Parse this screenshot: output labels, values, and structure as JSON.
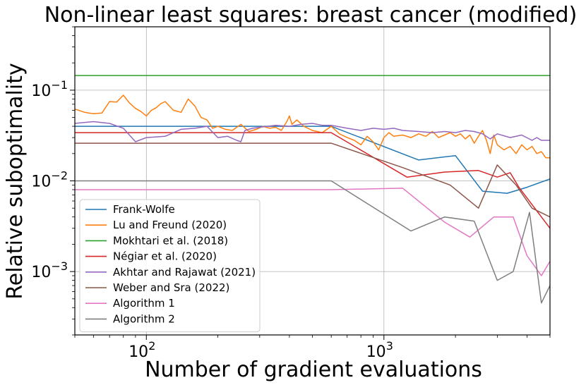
{
  "chart_data": {
    "type": "line",
    "title": "Non-linear least squares: breast cancer (modified)",
    "xlabel": "Number of gradient evaluations",
    "ylabel": "Relative suboptimality",
    "xscale": "log",
    "yscale": "log",
    "xlim": [
      50,
      5000
    ],
    "ylim": [
      0.0002,
      0.5
    ],
    "xticks": [
      {
        "value": 100,
        "base": "10",
        "exp": "2"
      },
      {
        "value": 1000,
        "base": "10",
        "exp": "3"
      }
    ],
    "yticks": [
      {
        "value": 0.1,
        "base": "10",
        "exp": "−1"
      },
      {
        "value": 0.01,
        "base": "10",
        "exp": "−2"
      },
      {
        "value": 0.001,
        "base": "10",
        "exp": "−3"
      }
    ],
    "grid": true,
    "legend_position": "lower-left",
    "series": [
      {
        "name": "Frank-Wolfe",
        "color": "#1f77b4",
        "x": [
          50,
          600,
          1400,
          2000,
          2600,
          3300,
          4000,
          5000
        ],
        "y": [
          0.04,
          0.04,
          0.017,
          0.019,
          0.0077,
          0.0073,
          0.0085,
          0.0105
        ]
      },
      {
        "name": "Lu and Freund (2020)",
        "color": "#ff7f0e",
        "x": [
          50,
          55,
          60,
          65,
          70,
          75,
          80,
          85,
          90,
          95,
          100,
          105,
          110,
          115,
          120,
          130,
          140,
          150,
          160,
          170,
          180,
          190,
          200,
          215,
          230,
          250,
          270,
          290,
          310,
          330,
          350,
          370,
          390,
          400,
          410,
          430,
          460,
          500,
          550,
          600,
          650,
          700,
          750,
          800,
          850,
          900,
          950,
          1000,
          1050,
          1100,
          1200,
          1300,
          1400,
          1500,
          1600,
          1700,
          1800,
          1900,
          2000,
          2100,
          2200,
          2300,
          2400,
          2500,
          2600,
          2700,
          2800,
          2900,
          3000,
          3200,
          3400,
          3600,
          3800,
          4000,
          4200,
          4400,
          4600,
          4800,
          5000
        ],
        "y": [
          0.062,
          0.057,
          0.055,
          0.056,
          0.075,
          0.074,
          0.088,
          0.072,
          0.063,
          0.058,
          0.052,
          0.06,
          0.064,
          0.071,
          0.075,
          0.06,
          0.057,
          0.08,
          0.067,
          0.05,
          0.047,
          0.038,
          0.04,
          0.037,
          0.036,
          0.042,
          0.035,
          0.037,
          0.04,
          0.038,
          0.039,
          0.036,
          0.045,
          0.052,
          0.042,
          0.047,
          0.04,
          0.036,
          0.034,
          0.04,
          0.033,
          0.03,
          0.028,
          0.025,
          0.031,
          0.027,
          0.022,
          0.03,
          0.034,
          0.031,
          0.032,
          0.03,
          0.033,
          0.031,
          0.035,
          0.03,
          0.032,
          0.034,
          0.031,
          0.033,
          0.029,
          0.032,
          0.026,
          0.031,
          0.036,
          0.028,
          0.02,
          0.032,
          0.025,
          0.022,
          0.024,
          0.02,
          0.025,
          0.022,
          0.024,
          0.02,
          0.021,
          0.018,
          0.018
        ]
      },
      {
        "name": "Mokhtari et al. (2018)",
        "color": "#2ca02c",
        "x": [
          50,
          5000
        ],
        "y": [
          0.145,
          0.145
        ]
      },
      {
        "name": "Négiar et al. (2020)",
        "color": "#d62728",
        "x": [
          50,
          600,
          1250,
          1800,
          2500,
          3000,
          3400,
          3700,
          5000
        ],
        "y": [
          0.034,
          0.034,
          0.011,
          0.0125,
          0.013,
          0.011,
          0.0123,
          0.0085,
          0.003
        ]
      },
      {
        "name": "Akhtar and Rajawat (2021)",
        "color": "#9467bd",
        "x": [
          50,
          60,
          70,
          80,
          90,
          100,
          120,
          140,
          160,
          180,
          200,
          220,
          240,
          250,
          260,
          280,
          300,
          350,
          400,
          450,
          500,
          550,
          600,
          700,
          800,
          900,
          1000,
          1100,
          1200,
          1400,
          1600,
          1800,
          2000,
          2200,
          2400,
          2600,
          2800,
          3000,
          3400,
          3800,
          4200,
          4400,
          4600,
          5000
        ],
        "y": [
          0.043,
          0.045,
          0.043,
          0.038,
          0.027,
          0.03,
          0.031,
          0.037,
          0.038,
          0.04,
          0.03,
          0.031,
          0.028,
          0.027,
          0.036,
          0.038,
          0.039,
          0.041,
          0.04,
          0.042,
          0.043,
          0.041,
          0.041,
          0.038,
          0.036,
          0.038,
          0.037,
          0.038,
          0.036,
          0.035,
          0.034,
          0.035,
          0.034,
          0.036,
          0.035,
          0.033,
          0.029,
          0.033,
          0.03,
          0.032,
          0.028,
          0.03,
          0.028,
          0.028
        ]
      },
      {
        "name": "Weber and Sra (2022)",
        "color": "#8c564b",
        "x": [
          50,
          600,
          1200,
          1900,
          2500,
          3000,
          3600,
          4200,
          5000
        ],
        "y": [
          0.026,
          0.026,
          0.014,
          0.009,
          0.005,
          0.015,
          0.009,
          0.005,
          0.004
        ]
      },
      {
        "name": "Algorithm 1",
        "color": "#e377c2",
        "x": [
          50,
          600,
          1200,
          1800,
          2300,
          2900,
          3500,
          4000,
          4600,
          5000
        ],
        "y": [
          0.008,
          0.008,
          0.0083,
          0.0035,
          0.0024,
          0.004,
          0.004,
          0.0015,
          0.0009,
          0.0013
        ]
      },
      {
        "name": "Algorithm 2",
        "color": "#7f7f7f",
        "x": [
          50,
          600,
          1300,
          1800,
          2400,
          3000,
          3500,
          4100,
          4600,
          5000
        ],
        "y": [
          0.01,
          0.01,
          0.0028,
          0.004,
          0.0036,
          0.0008,
          0.001,
          0.0045,
          0.00045,
          0.0007
        ]
      }
    ]
  }
}
